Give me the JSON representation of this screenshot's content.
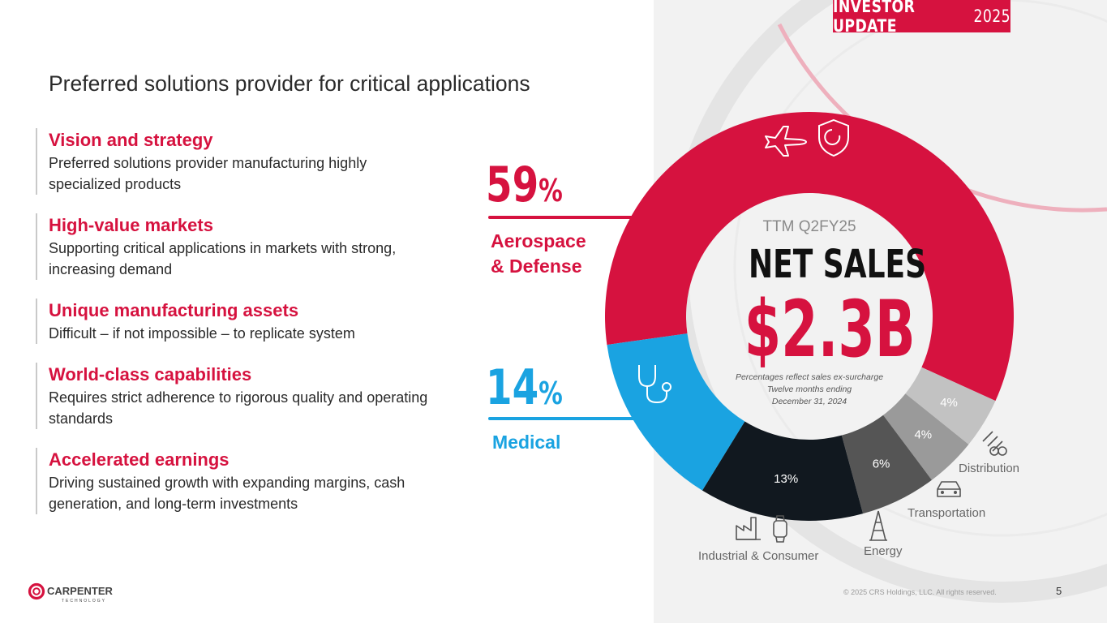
{
  "banner": {
    "bold": "INVESTOR UPDATE",
    "year": "2025"
  },
  "page": {
    "title": "Preferred solutions provider for critical applications",
    "number": "5"
  },
  "points": [
    {
      "title": "Vision and strategy",
      "desc": "Preferred solutions provider manufacturing highly specialized products"
    },
    {
      "title": "High-value markets",
      "desc": "Supporting critical applications in markets with strong, increasing demand"
    },
    {
      "title": "Unique manufacturing assets",
      "desc": "Difficult – if not impossible – to replicate system"
    },
    {
      "title": "World-class capabilities",
      "desc": "Requires strict adherence to rigorous quality and operating standards"
    },
    {
      "title": "Accelerated earnings",
      "desc": "Driving sustained growth with expanding margins, cash generation, and long-term investments"
    }
  ],
  "callouts": {
    "aerospace": {
      "value": "59",
      "symbol": "%",
      "label_line1": "Aerospace",
      "label_line2": "& Defense"
    },
    "medical": {
      "value": "14",
      "symbol": "%",
      "label": "Medical"
    }
  },
  "center": {
    "subtitle": "TTM Q2FY25",
    "title": "NET SALES",
    "value": "$2.3B",
    "note_line1": "Percentages reflect sales ex-surcharge",
    "note_line2": "Twelve months ending",
    "note_line3": "December 31, 2024"
  },
  "external_labels": {
    "distribution": "Distribution",
    "transportation": "Transportation",
    "energy": "Energy",
    "industrial": "Industrial & Consumer"
  },
  "chart_data": {
    "type": "pie",
    "categories": [
      "Aerospace & Defense",
      "Medical",
      "Industrial & Consumer",
      "Energy",
      "Transportation",
      "Distribution"
    ],
    "values": [
      59,
      14,
      13,
      6,
      4,
      4
    ],
    "labels": [
      "59%",
      "14%",
      "13%",
      "6%",
      "4%",
      "4%"
    ],
    "colors": [
      "#d6123f",
      "#1aa3e1",
      "#11181f",
      "#555555",
      "#9a9a9a",
      "#c2c2c2"
    ],
    "label_colors": [
      "#ffffff",
      "#ffffff",
      "#ffffff",
      "#ffffff",
      "#ffffff",
      "#ffffff"
    ],
    "title": "NET SALES"
  },
  "icons": {
    "aerospace": [
      "airplane-icon",
      "shield-icon"
    ],
    "medical": "stethoscope-icon",
    "industrial": [
      "factory-icon",
      "smartwatch-icon"
    ],
    "energy": "oil-rig-icon",
    "transportation": "car-icon",
    "distribution": "pipes-icon"
  },
  "footer": {
    "logo_name": "CARPENTER",
    "logo_sub": "TECHNOLOGY",
    "copyright": "© 2025 CRS Holdings, LLC. All rights reserved."
  }
}
